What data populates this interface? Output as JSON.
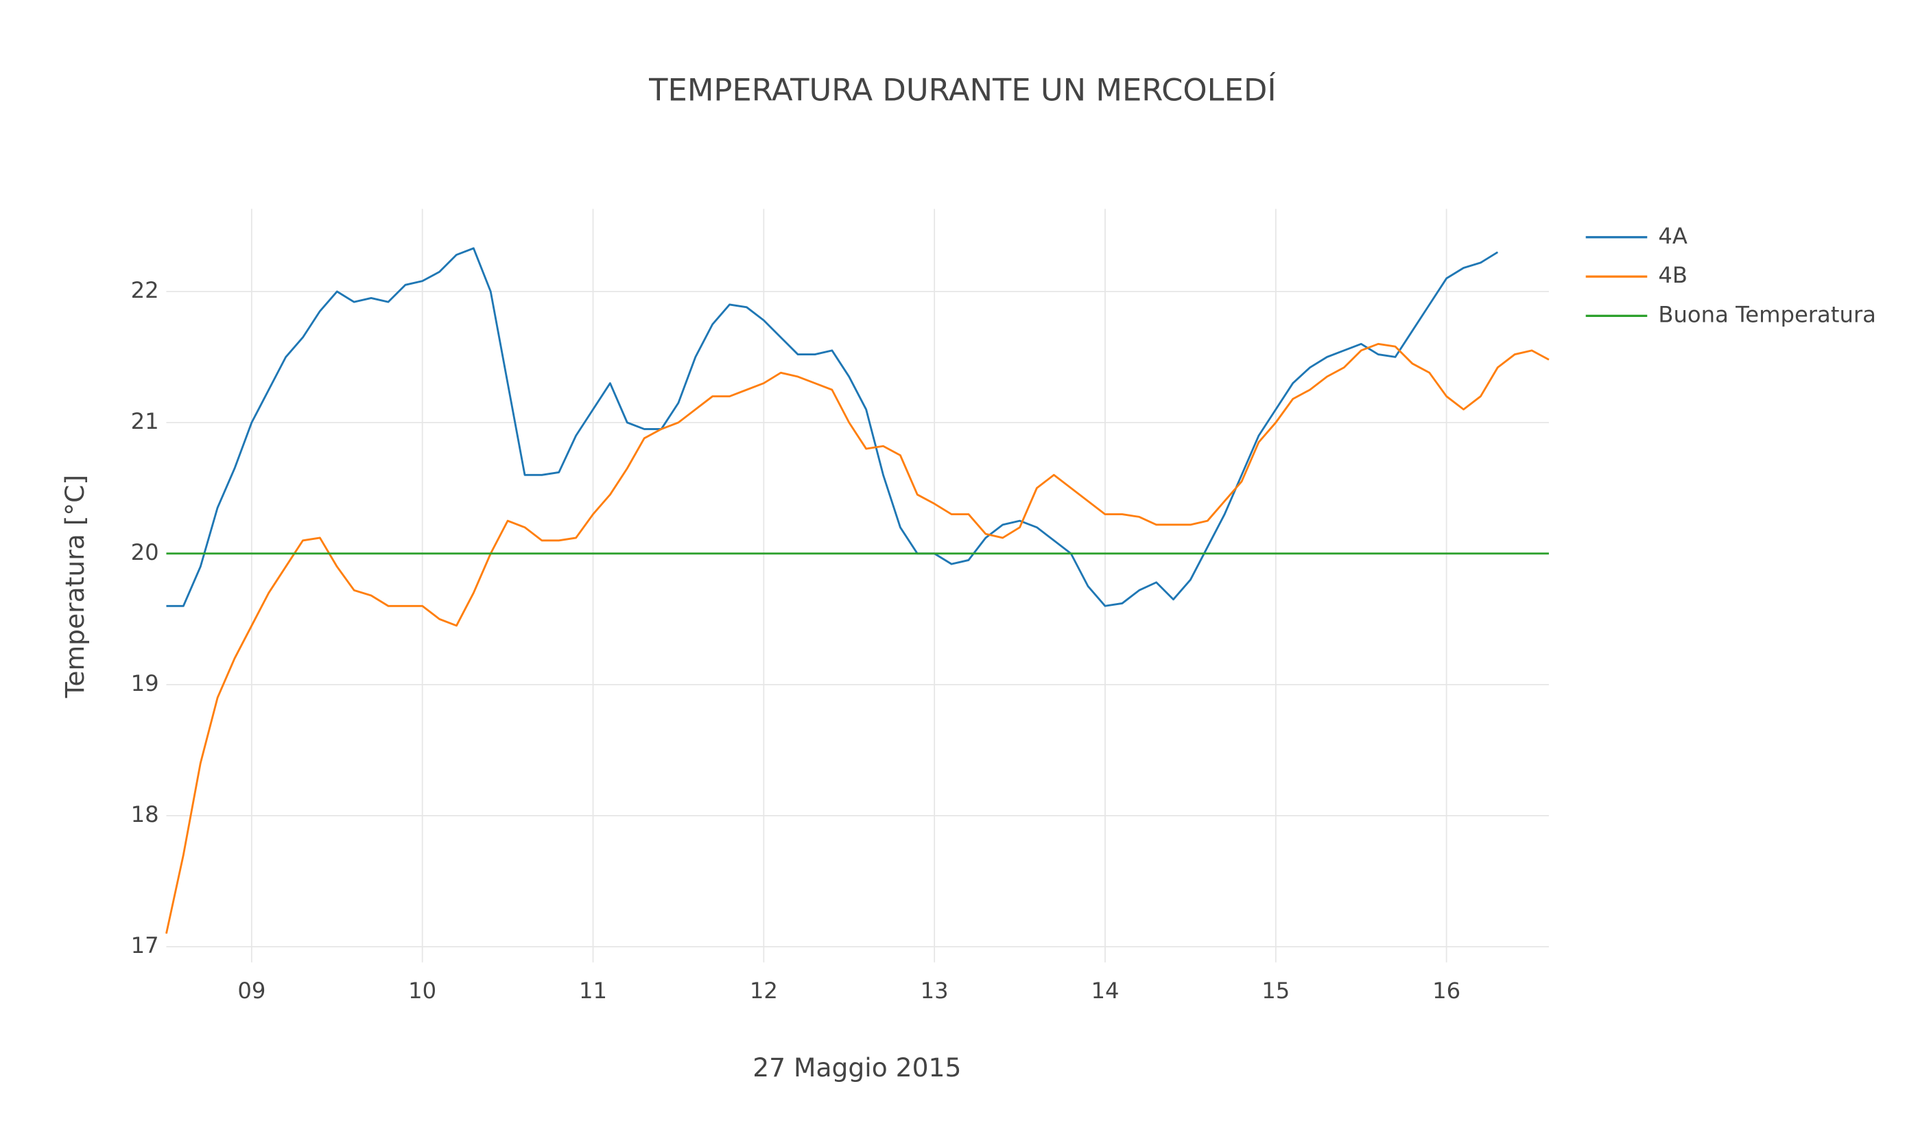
{
  "chart_data": {
    "type": "line",
    "title": "TEMPERATURA DURANTE UN MERCOLEDÍ",
    "x_label": "27 Maggio 2015",
    "y_label": "Temperatura [°C]",
    "x": [
      8.5,
      8.6,
      8.7,
      8.8,
      8.9,
      9,
      9.1,
      9.2,
      9.3,
      9.4,
      9.5,
      9.6,
      9.7,
      9.8,
      9.9,
      10,
      10.1,
      10.2,
      10.3,
      10.4,
      10.5,
      10.6,
      10.7,
      10.8,
      10.9,
      11,
      11.1,
      11.2,
      11.3,
      11.4,
      11.5,
      11.6,
      11.7,
      11.8,
      11.9,
      12,
      12.1,
      12.2,
      12.3,
      12.4,
      12.5,
      12.6,
      12.7,
      12.8,
      12.9,
      13,
      13.1,
      13.2,
      13.3,
      13.4,
      13.5,
      13.6,
      13.7,
      13.8,
      13.9,
      14,
      14.1,
      14.2,
      14.3,
      14.4,
      14.5,
      14.6,
      14.7,
      14.8,
      14.9,
      15,
      15.1,
      15.2,
      15.3,
      15.4,
      15.5,
      15.6,
      15.7,
      15.8,
      15.9,
      16,
      16.1,
      16.2,
      16.3,
      16.4,
      16.5,
      16.6
    ],
    "series": [
      {
        "name": "4A",
        "color": "#1f77b4",
        "values": [
          19.6,
          19.6,
          19.9,
          20.35,
          20.65,
          21.0,
          21.25,
          21.5,
          21.65,
          21.85,
          22.0,
          21.92,
          21.95,
          21.92,
          22.05,
          22.08,
          22.15,
          22.28,
          22.33,
          22.0,
          21.3,
          20.6,
          20.6,
          20.62,
          20.9,
          21.1,
          21.3,
          21.0,
          20.95,
          20.95,
          21.15,
          21.5,
          21.75,
          21.9,
          21.88,
          21.78,
          21.65,
          21.52,
          21.52,
          21.55,
          21.35,
          21.1,
          20.6,
          20.2,
          20.0,
          20.0,
          19.92,
          19.95,
          20.12,
          20.22,
          20.25,
          20.2,
          20.1,
          20.0,
          19.75,
          19.6,
          19.62,
          19.72,
          19.78,
          19.65,
          19.8,
          20.05,
          20.3,
          20.6,
          20.9,
          21.1,
          21.3,
          21.42,
          21.5,
          21.55,
          21.6,
          21.52,
          21.5,
          21.7,
          21.9,
          22.1,
          22.18,
          22.22,
          22.3,
          null,
          null,
          null
        ]
      },
      {
        "name": "4B",
        "color": "#ff7f0e",
        "values": [
          17.1,
          17.7,
          18.4,
          18.9,
          19.2,
          19.45,
          19.7,
          19.9,
          20.1,
          20.12,
          19.9,
          19.72,
          19.68,
          19.6,
          19.6,
          19.6,
          19.5,
          19.45,
          19.7,
          20.0,
          20.25,
          20.2,
          20.1,
          20.1,
          20.12,
          20.3,
          20.45,
          20.65,
          20.88,
          20.95,
          21.0,
          21.1,
          21.2,
          21.2,
          21.25,
          21.3,
          21.38,
          21.35,
          21.3,
          21.25,
          21.0,
          20.8,
          20.82,
          20.75,
          20.45,
          20.38,
          20.3,
          20.3,
          20.15,
          20.12,
          20.2,
          20.5,
          20.6,
          20.5,
          20.4,
          20.3,
          20.3,
          20.28,
          20.22,
          20.22,
          20.22,
          20.25,
          20.4,
          20.55,
          20.85,
          21.0,
          21.18,
          21.25,
          21.35,
          21.42,
          21.55,
          21.6,
          21.58,
          21.45,
          21.38,
          21.2,
          21.1,
          21.2,
          21.42,
          21.52,
          21.55,
          21.48
        ]
      },
      {
        "name": "Buona Temperatura",
        "color": "#2ca02c",
        "x": [
          8.5,
          16.6
        ],
        "values": [
          20,
          20
        ]
      }
    ],
    "xlim": [
      8.5,
      16.6
    ],
    "xticks": [
      {
        "value": 9,
        "label": "09"
      },
      10,
      11,
      12,
      13,
      14,
      15,
      16
    ],
    "ylim": [
      16.88,
      22.63
    ],
    "yticks": [
      17,
      18,
      19,
      20,
      21,
      22
    ],
    "grid": true,
    "legend": "right"
  }
}
